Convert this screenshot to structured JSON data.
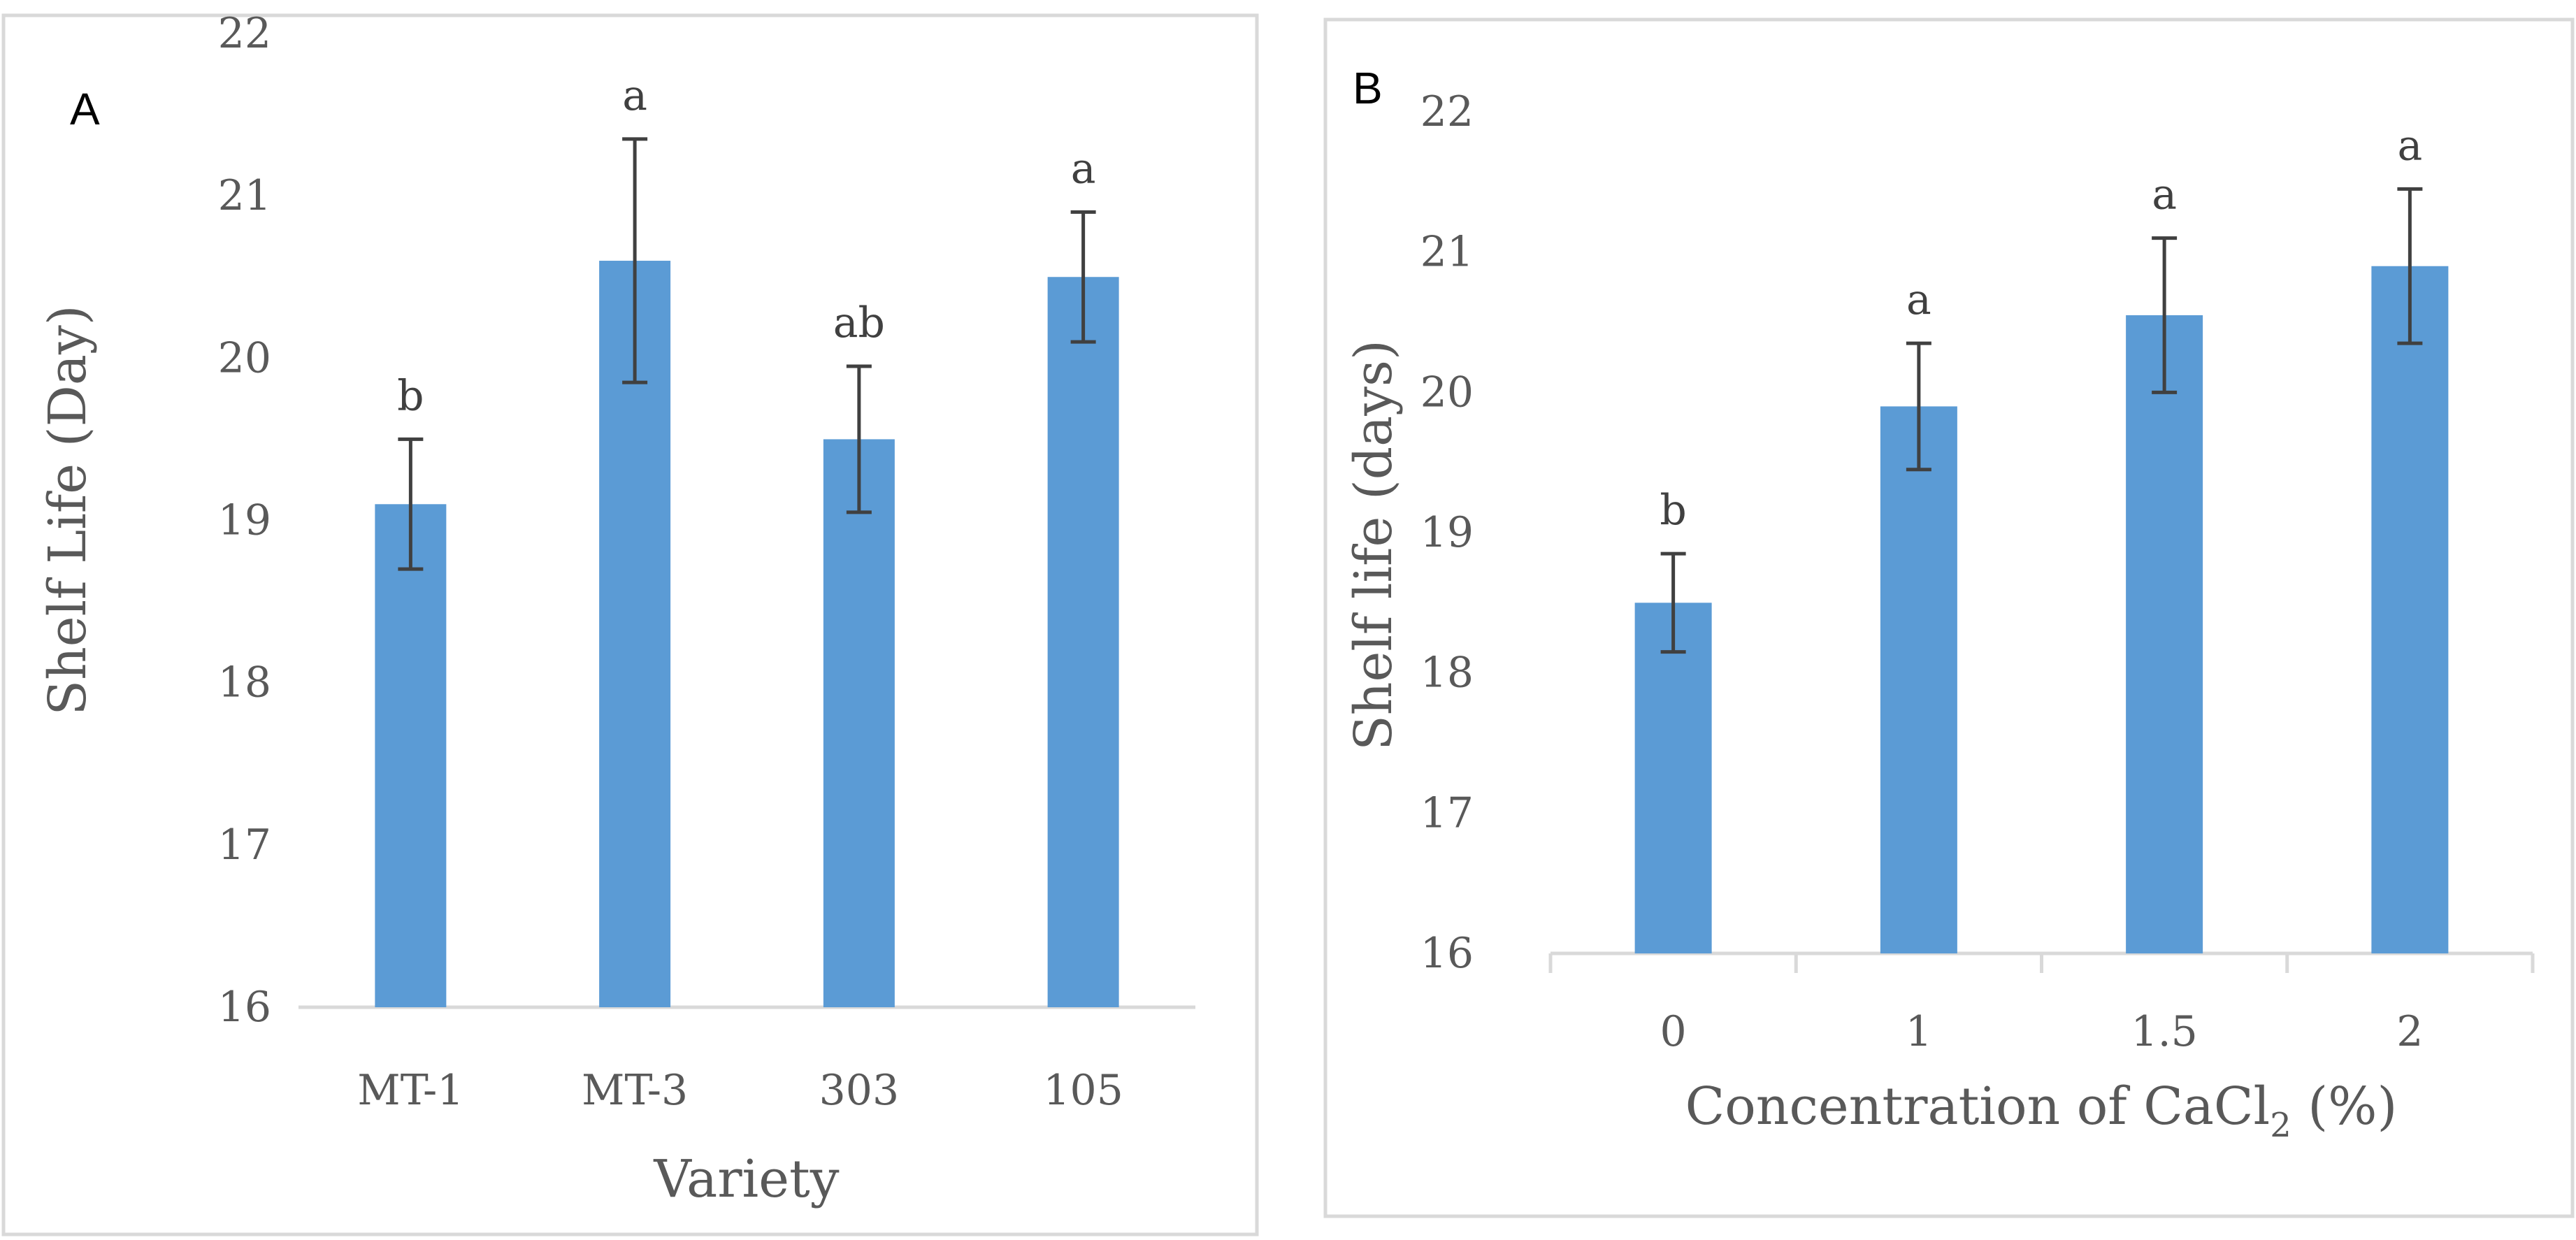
{
  "chart_data": [
    {
      "type": "bar",
      "panel_label": "A",
      "title": "",
      "xlabel": "Variety",
      "ylabel": "Shelf Life (Day)",
      "ylim": [
        16,
        22
      ],
      "yticks": [
        "16",
        "17",
        "18",
        "19",
        "20",
        "21",
        "22"
      ],
      "categories": [
        "MT-1",
        "MT-3",
        "303",
        "105"
      ],
      "values": [
        19.1,
        20.6,
        19.5,
        20.5
      ],
      "errors": [
        0.4,
        0.75,
        0.45,
        0.4
      ],
      "letters": [
        "b",
        "a",
        "ab",
        "a"
      ],
      "color": "#5b9bd5"
    },
    {
      "type": "bar",
      "panel_label": "B",
      "title": "",
      "xlabel": "Concentration of CaCl",
      "xlabel_sub": "2",
      "xlabel_suffix": " (%)",
      "ylabel": "Shelf life (days)",
      "ylim": [
        16,
        22
      ],
      "yticks": [
        "16",
        "17",
        "18",
        "19",
        "20",
        "21",
        "22"
      ],
      "categories": [
        "0",
        "1",
        "1.5",
        "2"
      ],
      "values": [
        18.5,
        19.9,
        20.55,
        20.9
      ],
      "errors": [
        0.35,
        0.45,
        0.55,
        0.55
      ],
      "letters": [
        "b",
        "a",
        "a",
        "a"
      ],
      "color": "#5b9bd5"
    }
  ]
}
